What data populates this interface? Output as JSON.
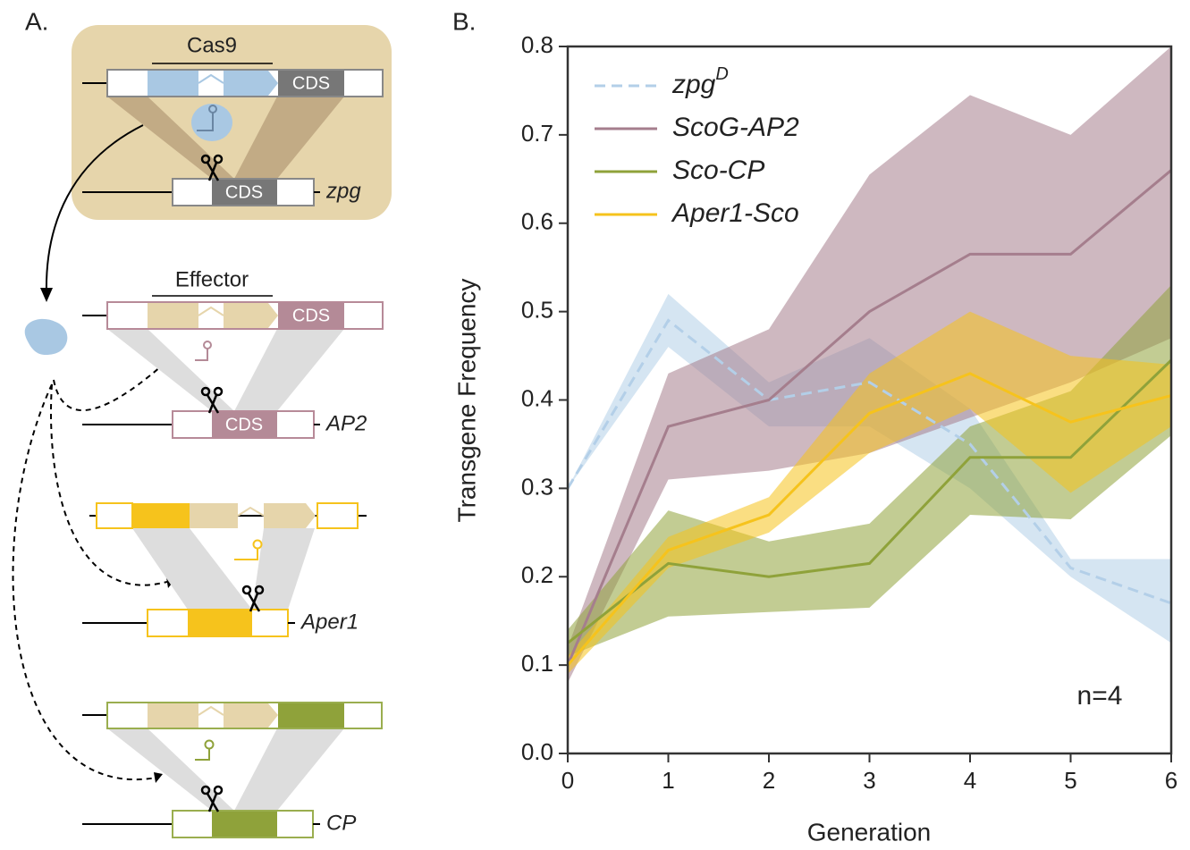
{
  "panel_a": {
    "label": "A.",
    "cas9_label": "Cas9",
    "effector_label": "Effector",
    "cds_texts": [
      "CDS",
      "CDS",
      "CDS",
      "CDS"
    ],
    "genes": [
      "zpg",
      "AP2",
      "Aper1",
      "CP"
    ]
  },
  "chart_data": {
    "type": "line",
    "panel_label": "B.",
    "xlabel": "Generation",
    "ylabel": "Transgene Frequency",
    "annotation": "n=4",
    "x": [
      0,
      1,
      2,
      3,
      4,
      5,
      6
    ],
    "xlim": [
      0,
      6
    ],
    "xticks": [
      0,
      1,
      2,
      3,
      4,
      5,
      6
    ],
    "ylim": [
      0,
      0.8
    ],
    "yticks": [
      {
        "value": 0,
        "label": "0.0"
      },
      0.1,
      0.2,
      0.3,
      0.4,
      0.5,
      0.6,
      0.7,
      0.8
    ],
    "legend": "upper left",
    "series": [
      {
        "name": "zpg",
        "name_superscript": "D",
        "color": "#b3cfe8",
        "linestyle": "dashed",
        "values": [
          0.3,
          0.49,
          0.4,
          0.42,
          0.35,
          0.21,
          0.17
        ],
        "lower": [
          0.3,
          0.46,
          0.37,
          0.37,
          0.3,
          0.2,
          0.125
        ],
        "upper": [
          0.3,
          0.52,
          0.42,
          0.47,
          0.39,
          0.22,
          0.22
        ]
      },
      {
        "name": "ScoG-AP2",
        "color": "#a57e8d",
        "linestyle": "solid",
        "values": [
          0.1,
          0.37,
          0.4,
          0.5,
          0.565,
          0.565,
          0.66
        ],
        "lower": [
          0.08,
          0.31,
          0.32,
          0.34,
          0.38,
          0.42,
          0.47
        ],
        "upper": [
          0.12,
          0.43,
          0.48,
          0.655,
          0.745,
          0.7,
          0.8
        ]
      },
      {
        "name": "Sco-CP",
        "color": "#8fa23a",
        "linestyle": "solid",
        "values": [
          0.125,
          0.215,
          0.2,
          0.215,
          0.335,
          0.335,
          0.445
        ],
        "lower": [
          0.11,
          0.155,
          0.16,
          0.165,
          0.27,
          0.265,
          0.36
        ],
        "upper": [
          0.14,
          0.275,
          0.24,
          0.26,
          0.37,
          0.41,
          0.53
        ]
      },
      {
        "name": "Aper1-Sco",
        "color": "#f6c31c",
        "linestyle": "solid",
        "values": [
          0.1,
          0.23,
          0.27,
          0.385,
          0.43,
          0.375,
          0.405
        ],
        "lower": [
          0.09,
          0.21,
          0.25,
          0.34,
          0.39,
          0.295,
          0.37
        ],
        "upper": [
          0.11,
          0.245,
          0.29,
          0.43,
          0.5,
          0.45,
          0.44
        ]
      }
    ]
  }
}
